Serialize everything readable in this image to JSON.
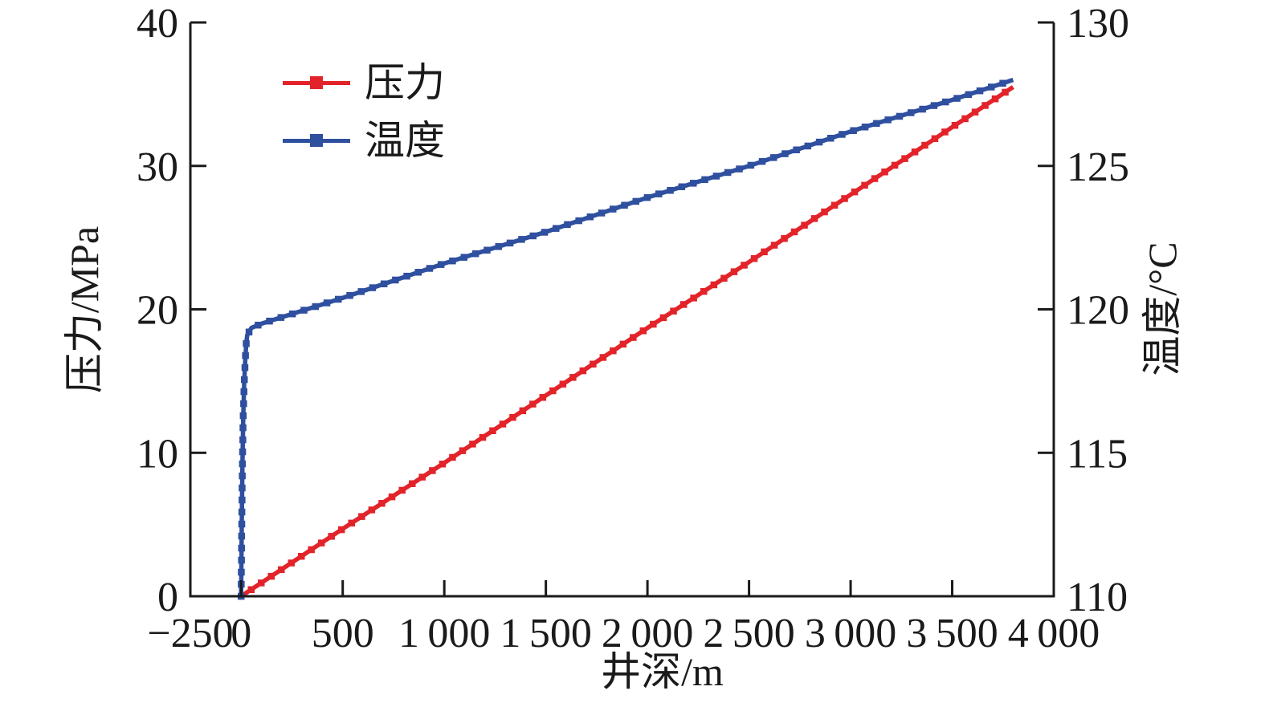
{
  "figure": {
    "background": "#ffffff",
    "axis_color": "#1a1a1a"
  },
  "chart_data": {
    "type": "line",
    "title": "",
    "xlabel": "井深/m",
    "ylabel_left": "压力/MPa",
    "ylabel_right": "温度/°C",
    "grid": false,
    "x_axis": {
      "min": -250,
      "max": 4000,
      "ticks": [
        -250,
        0,
        500,
        1000,
        1500,
        2000,
        2500,
        3000,
        3500,
        4000
      ],
      "tick_labels": [
        "−250",
        "0",
        "500",
        "1 000",
        "1 500",
        "2 000",
        "2 500",
        "3 000",
        "3 500",
        "4 000"
      ]
    },
    "y_axis_left": {
      "min": 0,
      "max": 40,
      "ticks": [
        0,
        10,
        20,
        30,
        40
      ],
      "tick_labels": [
        "0",
        "10",
        "20",
        "30",
        "40"
      ]
    },
    "y_axis_right": {
      "min": 110,
      "max": 130,
      "ticks": [
        110,
        115,
        120,
        125,
        130
      ],
      "tick_labels": [
        "110",
        "115",
        "120",
        "125",
        "130"
      ]
    },
    "legend": {
      "position": "top-left-inside",
      "items": [
        {
          "label": "压力",
          "color": "#e2242a"
        },
        {
          "label": "温度",
          "color": "#2f4f9f"
        }
      ]
    },
    "series": [
      {
        "name": "压力",
        "axis": "left",
        "unit": "MPa",
        "color": "#e2242a",
        "marker": "square",
        "points": [
          [
            0,
            0
          ],
          [
            500,
            4.7
          ],
          [
            1000,
            9.3
          ],
          [
            1500,
            14.0
          ],
          [
            2000,
            18.7
          ],
          [
            2500,
            23.3
          ],
          [
            3000,
            28.0
          ],
          [
            3500,
            32.7
          ],
          [
            3800,
            35.5
          ]
        ]
      },
      {
        "name": "温度",
        "axis": "right",
        "unit": "°C",
        "color": "#2f4f9f",
        "marker": "square",
        "points": [
          [
            0,
            110
          ],
          [
            3,
            112.5
          ],
          [
            6,
            114.5
          ],
          [
            10,
            116.2
          ],
          [
            15,
            117.4
          ],
          [
            20,
            118.2
          ],
          [
            25,
            118.8
          ],
          [
            30,
            119.1
          ],
          [
            50,
            119.35
          ],
          [
            100,
            119.5
          ],
          [
            500,
            120.4
          ],
          [
            1000,
            121.6
          ],
          [
            1500,
            122.7
          ],
          [
            2000,
            123.9
          ],
          [
            2500,
            125.0
          ],
          [
            3000,
            126.2
          ],
          [
            3500,
            127.3
          ],
          [
            3800,
            128.0
          ]
        ]
      }
    ]
  }
}
